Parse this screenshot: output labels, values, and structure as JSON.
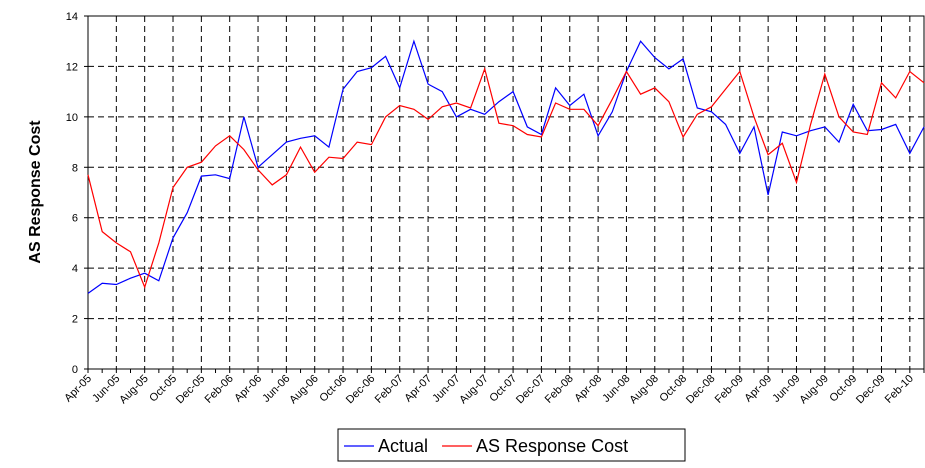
{
  "chart_data": {
    "type": "line",
    "y_label": "AS Response Cost",
    "categories": [
      "Apr-05",
      null,
      "Jun-05",
      null,
      "Aug-05",
      null,
      "Oct-05",
      null,
      "Dec-05",
      null,
      "Feb-06",
      null,
      "Apr-06",
      null,
      "Jun-06",
      null,
      "Aug-06",
      null,
      "Oct-06",
      null,
      "Dec-06",
      null,
      "Feb-07",
      null,
      "Apr-07",
      null,
      "Jun-07",
      null,
      "Aug-07",
      null,
      "Oct-07",
      null,
      "Dec-07",
      null,
      "Feb-08",
      null,
      "Apr-08",
      null,
      "Jun-08",
      null,
      "Aug-08",
      null,
      "Oct-08",
      null,
      "Dec-08",
      null,
      "Feb-09",
      null,
      "Apr-09",
      null,
      "Jun-09",
      null,
      "Aug-09",
      null,
      "Oct-09",
      null,
      "Dec-09",
      null,
      "Feb-10",
      null
    ],
    "series": [
      {
        "name": "Actual",
        "color": "#0000ff",
        "values": [
          3.0,
          3.4,
          3.35,
          3.6,
          3.8,
          3.5,
          5.2,
          6.2,
          7.65,
          7.7,
          7.55,
          10.0,
          8.0,
          8.5,
          9.0,
          9.15,
          9.25,
          8.8,
          11.1,
          11.8,
          11.95,
          12.4,
          11.15,
          13.0,
          11.3,
          11.0,
          10.0,
          10.3,
          10.1,
          10.6,
          11.0,
          9.6,
          9.3,
          11.15,
          10.45,
          10.9,
          9.25,
          10.2,
          11.8,
          13.0,
          12.35,
          11.9,
          12.3,
          10.35,
          10.2,
          9.7,
          8.55,
          9.6,
          6.9,
          9.4,
          9.25,
          9.45,
          9.6,
          9.0,
          10.5,
          9.45,
          9.5,
          9.7,
          8.55,
          9.6
        ]
      },
      {
        "name": "AS Response Cost",
        "color": "#ff0000",
        "values": [
          7.7,
          5.45,
          5.0,
          4.65,
          3.25,
          5.0,
          7.2,
          8.0,
          8.2,
          8.85,
          9.25,
          8.7,
          7.9,
          7.3,
          7.7,
          8.8,
          7.8,
          8.4,
          8.35,
          9.0,
          8.9,
          10.0,
          10.45,
          10.3,
          9.9,
          10.4,
          10.55,
          10.35,
          11.9,
          9.75,
          9.65,
          9.3,
          9.2,
          10.55,
          10.3,
          10.3,
          9.65,
          10.7,
          11.8,
          10.9,
          11.15,
          10.6,
          9.2,
          10.1,
          10.4,
          11.1,
          11.8,
          10.0,
          8.5,
          8.95,
          7.4,
          9.7,
          11.7,
          10.0,
          9.4,
          9.3,
          11.35,
          10.75,
          11.8,
          11.35
        ]
      }
    ],
    "ylim": [
      0,
      14
    ],
    "yticks": [
      0,
      2,
      4,
      6,
      8,
      10,
      12,
      14
    ],
    "grid": true
  }
}
